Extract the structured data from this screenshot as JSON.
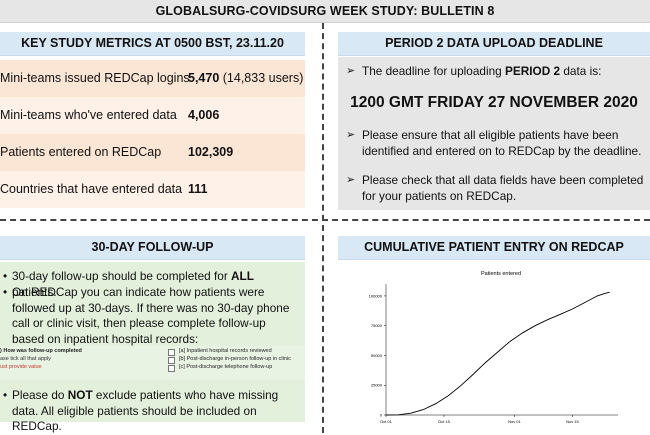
{
  "title": "GLOBALSURG-COVIDSURG WEEK STUDY: BULLETIN 8",
  "metrics": {
    "header": "KEY STUDY METRICS AT 0500 BST, 23.11.20",
    "rows": [
      {
        "label": "Mini-teams issued REDCap logins",
        "value": "5,470",
        "extra": " (14,833 users)"
      },
      {
        "label": "Mini-teams who've entered data",
        "value": "4,006",
        "extra": ""
      },
      {
        "label": "Patients entered on REDCap",
        "value": "102,309",
        "extra": ""
      },
      {
        "label": "Countries that have entered data",
        "value": "111",
        "extra": ""
      }
    ]
  },
  "deadline": {
    "header": "PERIOD 2 DATA UPLOAD DEADLINE",
    "intro_prefix": "The deadline for uploading ",
    "intro_bold": "PERIOD 2",
    "intro_suffix": " data is:",
    "datetime": "1200 GMT FRIDAY 27 NOVEMBER 2020",
    "point1": "Please ensure that all eligible patients have been identified and entered on to REDCap by the deadline.",
    "point2": "Please check that all data fields have been completed for your patients on REDCap.",
    "arrow_glyph": "➢"
  },
  "followup": {
    "header": "30-DAY FOLLOW-UP",
    "b1_prefix": "30-day follow-up should be completed for ",
    "b1_bold": "ALL",
    "b1_suffix": " patients.",
    "b2": "On REDCap you can indicate how patients were followed up at 30-days. If there was no 30-day phone call or clinic visit, then please complete follow-up based on inpatient hospital records:",
    "form_question": ") How was follow-up completed",
    "form_sub": "ase tick all that apply",
    "form_req": "ust provide value",
    "form_options": [
      "[a] Inpatient hospital records reviewed",
      "[b] Post-discharge in-person follow-up in clinic",
      "[c] Post-discharge telephone follow-up"
    ],
    "b3_prefix": "Please do ",
    "b3_bold": "NOT",
    "b3_suffix": " exclude patients who have missing data. All eligible patients should be included on REDCap.",
    "bullet_glyph": "•"
  },
  "chart_section": {
    "header": "CUMULATIVE PATIENT ENTRY ON REDCAP"
  },
  "chart_data": {
    "type": "line",
    "title": "Patients entered",
    "xlabel": "",
    "ylabel": "",
    "x_ticks": [
      "Oct 01",
      "Oct 15",
      "Nov 01",
      "Nov 15"
    ],
    "y_ticks": [
      0,
      25000,
      50000,
      75000,
      100000
    ],
    "ylim": [
      0,
      110000
    ],
    "grid": false,
    "x": [
      0,
      3,
      6,
      9,
      12,
      15,
      18,
      21,
      24,
      27,
      30,
      33,
      36,
      39,
      42,
      45,
      48,
      51,
      53,
      54
    ],
    "values": [
      0,
      200,
      1500,
      4500,
      9500,
      16000,
      24500,
      34000,
      44000,
      53000,
      62000,
      69000,
      75000,
      80000,
      84500,
      89000,
      94500,
      100000,
      102309,
      103000
    ],
    "color": "#000000"
  }
}
